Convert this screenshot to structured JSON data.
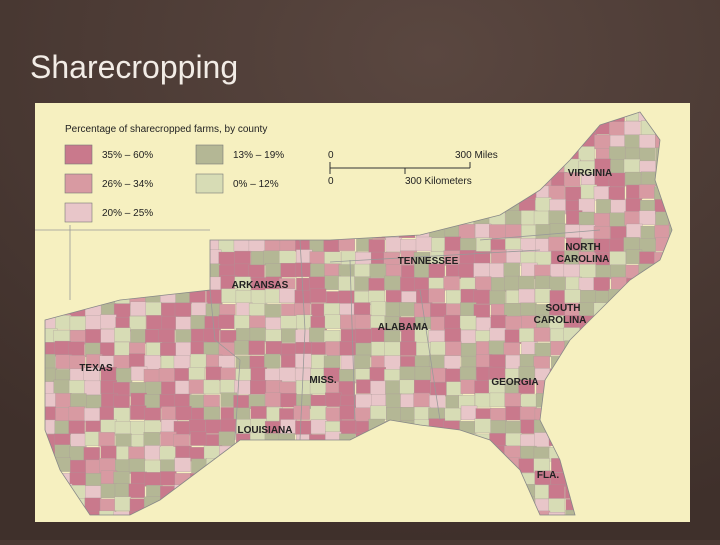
{
  "slide": {
    "title": "Sharecropping"
  },
  "map": {
    "legend": {
      "title": "Percentage of sharecropped farms, by county",
      "items": [
        {
          "label": "35% – 60%",
          "color": "#c9798c"
        },
        {
          "label": "26% – 34%",
          "color": "#d89aa2"
        },
        {
          "label": "20% – 25%",
          "color": "#e8c6c9"
        },
        {
          "label": "13% – 19%",
          "color": "#b4b795"
        },
        {
          "label": "0% – 12%",
          "color": "#d7dcb5"
        }
      ]
    },
    "scale": {
      "miles_zero": "0",
      "miles": "300 Miles",
      "km_zero": "0",
      "km": "300 Kilometers"
    },
    "states": [
      "VIRGINIA",
      "NORTH",
      "CAROLINA",
      "TENNESSEE",
      "ARKANSAS",
      "SOUTH",
      "CAROLINA",
      "ALABAMA",
      "TEXAS",
      "MISS.",
      "GEORGIA",
      "LOUISIANA",
      "FLA."
    ]
  }
}
